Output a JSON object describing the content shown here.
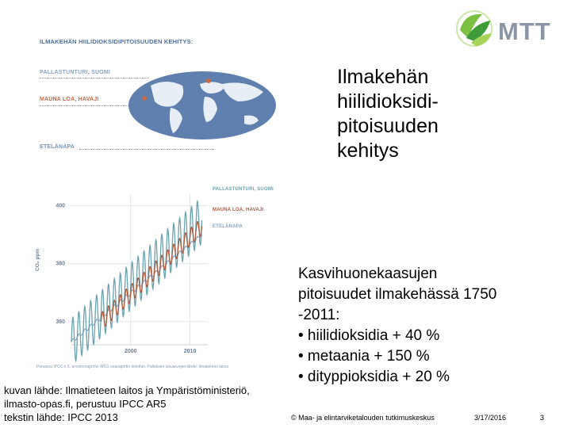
{
  "figure": {
    "title": "ILMAKEHÄN HIILIDIOKSIDIPITOISUUDEN KEHITYS:",
    "stations": {
      "pallas": "PALLASTUNTURI, SUOMI",
      "mauna": "MAUNA LOA, HAVAJI",
      "south": "ETELÄNAPA"
    },
    "colors": {
      "pallas": "#6aa4b0",
      "mauna": "#b05a3c",
      "south": "#8ca6c4",
      "map": "#5f7fae"
    },
    "legend": {
      "pallas": "PALLASTUNTURI, SUOMI",
      "mauna": "MAUNA LOA, HAVAJI",
      "south": "ETELÄNAPA"
    },
    "ylabel": "CO₂ ppm",
    "source_note": "Perustuu IPCC:n 5. arviointiraportin WG1-osaraportin tietoihin.   Pallaksen lukuarvojen lähde: Ilmatieteen laitos"
  },
  "chart_data": {
    "type": "line",
    "ylabel": "CO₂ ppm",
    "ylim": [
      352,
      404
    ],
    "xlim": [
      1990,
      2013
    ],
    "yticks": [
      400,
      380,
      360
    ],
    "xticks": [
      2000,
      2010
    ],
    "series": [
      {
        "name": "PALLASTUNTURI, SUOMI",
        "start_year": 1990,
        "end_year": 2012,
        "trend_start": 353,
        "trend_end": 395,
        "seasonal_amplitude": 8.0
      },
      {
        "name": "MAUNA LOA, HAVAJI",
        "start_year": 1995,
        "end_year": 2012,
        "trend_start": 360,
        "trend_end": 393,
        "seasonal_amplitude": 3.0
      },
      {
        "name": "ETELÄNAPA",
        "start_year": 1990,
        "end_year": 2012,
        "trend_start": 353,
        "trend_end": 390,
        "seasonal_amplitude": 0.6
      }
    ]
  },
  "slide": {
    "title_lines": [
      "Ilmakehän",
      "hiilidioksidi-",
      "pitoisuuden",
      "kehitys"
    ],
    "body_lines": [
      "Kasvihuonekaasujen",
      "pitoisuudet ilmakehässä 1750",
      "-2011:",
      "• hiilidioksidia + 40 %",
      "• metaania + 150 %",
      "• dityppioksidia + 20 %"
    ],
    "credit_lines": [
      "kuvan lähde: Ilmatieteen laitos ja Ympäristöministeriö,",
      "ilmasto-opas.fi, perustuu IPCC AR5",
      "tekstin lähde: IPCC 2013"
    ],
    "footer": {
      "copyright": "© Maa- ja elintarviketalouden tutkimuskeskus",
      "date": "3/17/2016",
      "page": "3"
    }
  },
  "logo": {
    "text": "MTT"
  }
}
